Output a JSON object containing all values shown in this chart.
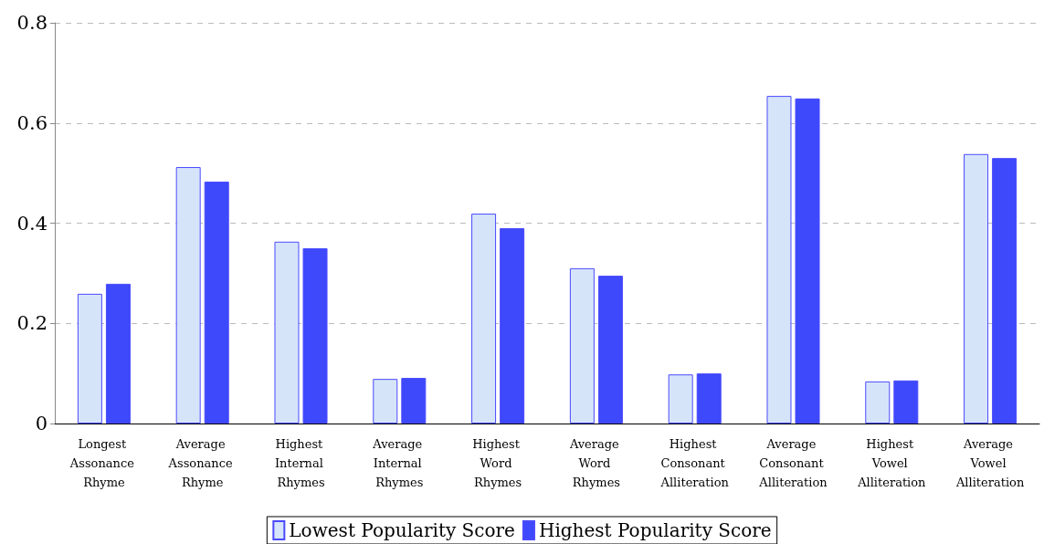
{
  "chart_data": {
    "type": "bar",
    "categories": [
      "Longest Assonance Rhyme",
      "Average Assonance Rhyme",
      "Highest Internal Rhymes",
      "Average Internal Rhymes",
      "Highest Word Rhymes",
      "Average Word Rhymes",
      "Highest Consonant Alliteration",
      "Average Consonant Alliteration",
      "Highest Vowel Alliteration",
      "Average Vowel Alliteration"
    ],
    "series": [
      {
        "name": "Lowest Popularity Score",
        "color": "#d6e4fa",
        "values": [
          0.259,
          0.512,
          0.363,
          0.089,
          0.419,
          0.31,
          0.098,
          0.654,
          0.084,
          0.538
        ]
      },
      {
        "name": "Highest Popularity Score",
        "color": "#3d49fa",
        "values": [
          0.279,
          0.483,
          0.35,
          0.091,
          0.39,
          0.295,
          0.1,
          0.649,
          0.086,
          0.53
        ]
      }
    ],
    "ylim": [
      0,
      0.8
    ],
    "yticks": [
      0,
      0.2,
      0.4,
      0.6,
      0.8
    ],
    "grid": "y",
    "legend": "bottom"
  }
}
